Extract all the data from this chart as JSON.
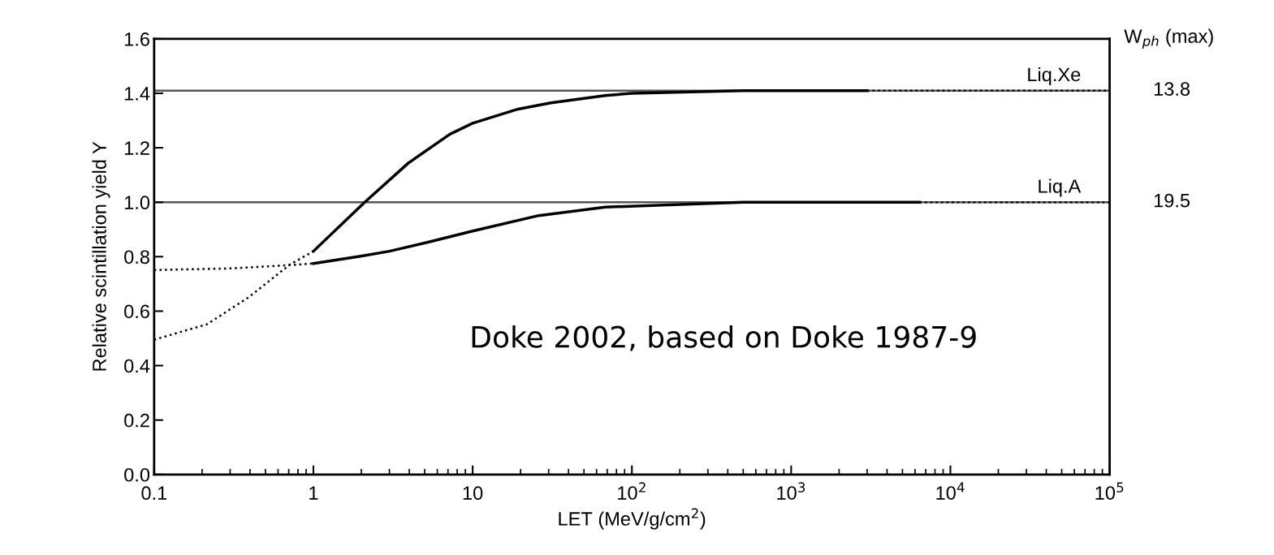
{
  "chart_data": {
    "type": "line",
    "xlabel": "LET (MeV/g/cm$^{2}$)",
    "ylabel": "Relative scintillation yield Y",
    "log": "x",
    "xlim": [
      0.1,
      100000
    ],
    "xticks": [
      0.1,
      1,
      10,
      {
        "value": 100,
        "label": "10$^{2}$"
      },
      {
        "value": 1000,
        "label": "10$^{3}$"
      },
      {
        "value": 10000,
        "label": "10$^{4}$"
      },
      {
        "value": 100000,
        "label": "10$^{5}$"
      }
    ],
    "ylim": [
      0,
      1.6
    ],
    "yticks": [
      {
        "value": 0,
        "label": "0.0"
      },
      0.2,
      0.4,
      0.6,
      0.8,
      {
        "value": 1,
        "label": "1.0"
      },
      1.2,
      1.4,
      1.6
    ],
    "grid": false,
    "marker": "none",
    "series": [
      {
        "color": "#000000",
        "line_style": "solid",
        "x": [
          1,
          2.1,
          3.95,
          7.2,
          10,
          19.3,
          31,
          68,
          100,
          500,
          3000
        ],
        "values": [
          0.82,
          1.0,
          1.144,
          1.25,
          1.29,
          1.342,
          1.365,
          1.392,
          1.4,
          1.41,
          1.41
        ]
      },
      {
        "color": "#000000",
        "line_style": "dotted",
        "x": [
          0.1,
          0.215,
          0.39,
          0.715,
          1
        ],
        "values": [
          0.495,
          0.552,
          0.65,
          0.772,
          0.82
        ]
      },
      {
        "color": "#000000",
        "line_style": "dotted",
        "x": [
          3000,
          100000
        ],
        "values": [
          1.41,
          1.41
        ]
      },
      {
        "color": "#000000",
        "line_style": "solid",
        "x": [
          1,
          1.98,
          3.0,
          5.5,
          10,
          26,
          68,
          500,
          6400
        ],
        "values": [
          0.775,
          0.802,
          0.82,
          0.856,
          0.894,
          0.951,
          0.982,
          1.0,
          1.0
        ]
      },
      {
        "color": "#000000",
        "line_style": "dotted",
        "x": [
          0.1,
          0.31,
          0.71,
          1
        ],
        "values": [
          0.751,
          0.757,
          0.769,
          0.775
        ]
      },
      {
        "color": "#000000",
        "line_style": "dotted",
        "x": [
          6400,
          100000
        ],
        "values": [
          1.0,
          1.0
        ]
      }
    ],
    "ref_lines": [
      {
        "axis": "y",
        "value": 1.41,
        "label": "Liq.Xe",
        "color": "#555555"
      },
      {
        "axis": "y",
        "value": 1.0,
        "label": "Liq.A",
        "color": "#555555"
      }
    ],
    "annotations": [
      "Doke 2002, based on Doke 1987-9",
      "W$_{ph}$ (max)",
      "13.8",
      "19.5"
    ]
  }
}
